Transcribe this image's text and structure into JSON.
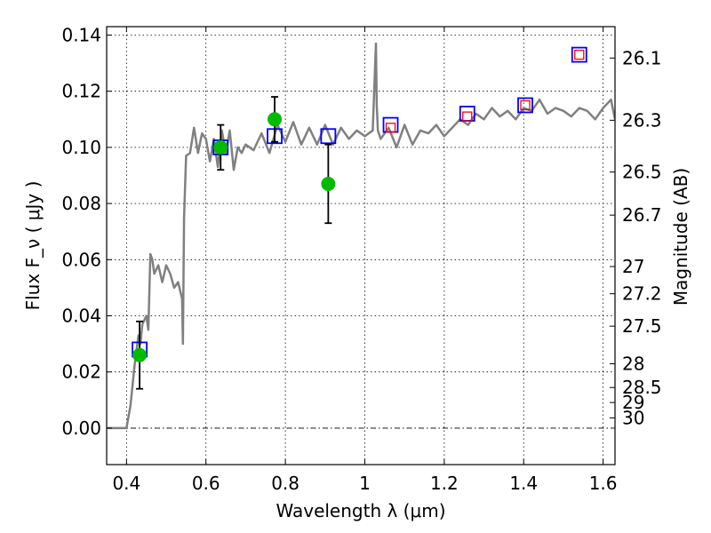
{
  "chart_data": {
    "type": "line",
    "xlabel": "Wavelength  λ (μm)",
    "ylabel": "Flux  F_ν  ( μJy )",
    "ylabel_right": "Magnitude (AB)",
    "xlim": [
      0.35,
      1.63
    ],
    "ylim": [
      -0.013,
      0.143
    ],
    "grid": true,
    "x_ticks": [
      0.4,
      0.6,
      0.8,
      1.0,
      1.2,
      1.4,
      1.6
    ],
    "x_tick_labels": [
      "0.4",
      "0.6",
      "0.8",
      "1",
      "1.2",
      "1.4",
      "1.6"
    ],
    "y_ticks": [
      0.0,
      0.02,
      0.04,
      0.06,
      0.08,
      0.1,
      0.12,
      0.14
    ],
    "y_tick_labels": [
      "0.00",
      "0.02",
      "0.04",
      "0.06",
      "0.08",
      "0.10",
      "0.12",
      "0.14"
    ],
    "right_ticks": [
      {
        "mag": 26.1,
        "label": "26.1"
      },
      {
        "mag": 26.3,
        "label": "26.3"
      },
      {
        "mag": 26.5,
        "label": "26.5"
      },
      {
        "mag": 26.7,
        "label": "26.7"
      },
      {
        "mag": 27,
        "label": "27"
      },
      {
        "mag": 27.2,
        "label": "27.2"
      },
      {
        "mag": 27.5,
        "label": "27.5"
      },
      {
        "mag": 28,
        "label": "28"
      },
      {
        "mag": 28.5,
        "label": "28.5"
      },
      {
        "mag": 29,
        "label": "29"
      },
      {
        "mag": 30,
        "label": "30"
      }
    ],
    "series": [
      {
        "kind": "sed_model_line",
        "color": "#808080",
        "x": [
          0.35,
          0.4,
          0.41,
          0.42,
          0.43,
          0.435,
          0.44,
          0.45,
          0.455,
          0.46,
          0.465,
          0.47,
          0.48,
          0.49,
          0.5,
          0.51,
          0.52,
          0.53,
          0.54,
          0.542,
          0.545,
          0.55,
          0.56,
          0.57,
          0.58,
          0.59,
          0.6,
          0.61,
          0.62,
          0.63,
          0.64,
          0.65,
          0.66,
          0.67,
          0.68,
          0.69,
          0.7,
          0.72,
          0.74,
          0.76,
          0.78,
          0.8,
          0.82,
          0.84,
          0.86,
          0.88,
          0.9,
          0.92,
          0.94,
          0.96,
          0.98,
          1.0,
          1.02,
          1.028,
          1.03,
          1.033,
          1.04,
          1.06,
          1.08,
          1.1,
          1.12,
          1.14,
          1.16,
          1.18,
          1.2,
          1.22,
          1.24,
          1.26,
          1.28,
          1.3,
          1.32,
          1.34,
          1.36,
          1.38,
          1.4,
          1.42,
          1.44,
          1.46,
          1.48,
          1.5,
          1.52,
          1.54,
          1.56,
          1.58,
          1.6,
          1.62,
          1.63
        ],
        "y": [
          0.0,
          0.0,
          0.008,
          0.022,
          0.033,
          0.03,
          0.037,
          0.04,
          0.035,
          0.062,
          0.06,
          0.055,
          0.058,
          0.052,
          0.058,
          0.055,
          0.05,
          0.052,
          0.046,
          0.03,
          0.075,
          0.097,
          0.098,
          0.107,
          0.098,
          0.105,
          0.103,
          0.095,
          0.103,
          0.093,
          0.106,
          0.098,
          0.106,
          0.092,
          0.1,
          0.098,
          0.101,
          0.099,
          0.105,
          0.098,
          0.108,
          0.102,
          0.109,
          0.101,
          0.107,
          0.101,
          0.108,
          0.101,
          0.107,
          0.103,
          0.106,
          0.104,
          0.106,
          0.137,
          0.115,
          0.106,
          0.103,
          0.107,
          0.1,
          0.108,
          0.101,
          0.106,
          0.105,
          0.108,
          0.104,
          0.107,
          0.11,
          0.108,
          0.112,
          0.11,
          0.114,
          0.111,
          0.113,
          0.11,
          0.114,
          0.113,
          0.117,
          0.112,
          0.114,
          0.113,
          0.111,
          0.114,
          0.113,
          0.11,
          0.114,
          0.117,
          0.11
        ]
      },
      {
        "kind": "model_photometry_squares",
        "color": "#0000ff",
        "x": [
          0.433,
          0.637,
          0.773,
          0.908,
          1.065,
          1.258,
          1.404,
          1.54
        ],
        "y": [
          0.028,
          0.1,
          0.104,
          0.104,
          0.108,
          0.112,
          0.115,
          0.133
        ]
      },
      {
        "kind": "synthetic_points_open_squares",
        "color": "#ff0000",
        "x": [
          1.065,
          1.258,
          1.404,
          1.54
        ],
        "y": [
          0.107,
          0.111,
          0.115,
          0.133
        ]
      },
      {
        "kind": "observed_points_with_errors",
        "color": "#00bb00",
        "x": [
          0.433,
          0.637,
          0.773,
          0.908
        ],
        "y": [
          0.026,
          0.1,
          0.11,
          0.087
        ],
        "yerr": [
          0.012,
          0.008,
          0.008,
          0.014
        ]
      }
    ]
  }
}
